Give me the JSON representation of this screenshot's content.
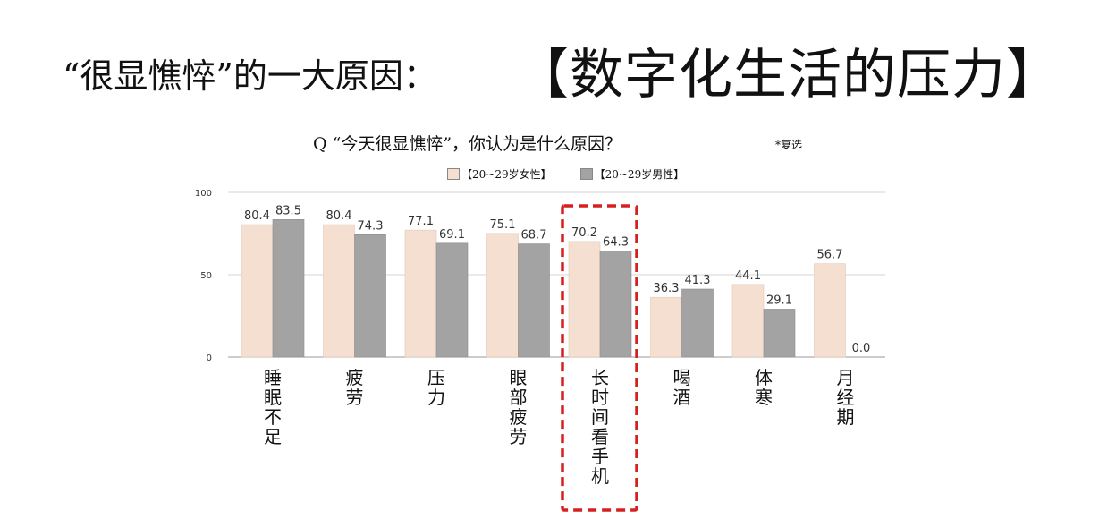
{
  "header": {
    "prefix": "“很显憔悴”的一大原因：",
    "main": "【数字化生活的压力】"
  },
  "chart_data": {
    "type": "bar",
    "title": "Q “今天很显憔悴”，你认为是什么原因？",
    "note": "*复选",
    "categories": [
      "睡眠不足",
      "疲劳",
      "压力",
      "眼部疲劳",
      "长时间看手机",
      "喝酒",
      "体寒",
      "月经期"
    ],
    "series": [
      {
        "name": "【20~29岁女性】",
        "color": "#f5dfd0",
        "values": [
          80.4,
          80.4,
          77.1,
          75.1,
          70.2,
          36.3,
          44.1,
          56.7
        ]
      },
      {
        "name": "【20~29岁男性】",
        "color": "#a3a3a3",
        "values": [
          83.5,
          74.3,
          69.1,
          68.7,
          64.3,
          41.3,
          29.1,
          0.0
        ]
      }
    ],
    "ylim": [
      0,
      100
    ],
    "yticks": [
      0,
      50,
      100
    ],
    "grid": true,
    "legend_position": "top-center",
    "highlight": {
      "category": "长时间看手机",
      "style": "red dashed box",
      "color": "#d62020"
    }
  }
}
